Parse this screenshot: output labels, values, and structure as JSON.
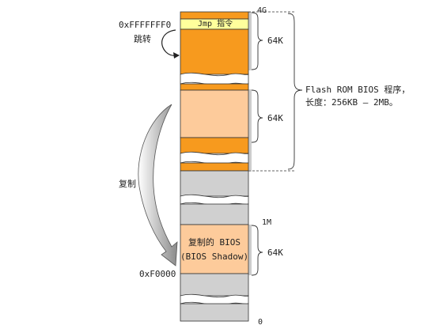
{
  "labels": {
    "addr_top": "0xFFFFFFF0",
    "jump": "跳转",
    "jmp_instruction": "Jmp 指令",
    "copy": "复制",
    "addr_f0000": "0xF0000",
    "mark_4g": "4G",
    "mark_1m": "1M",
    "mark_0": "0",
    "size_64k_1": "64K",
    "size_64k_2": "64K",
    "size_64k_3": "64K",
    "flash_line1": "Flash ROM BIOS 程序，",
    "flash_line2": "长度：256KB — 2MB。",
    "shadow_line1": "复制的 BIOS",
    "shadow_line2": "(BIOS Shadow)"
  },
  "colors": {
    "orange": "#F79A1E",
    "light_orange": "#FDCB9B",
    "yellow": "#FFFF9C",
    "gray": "#D0D0D0",
    "outline": "#333333"
  }
}
